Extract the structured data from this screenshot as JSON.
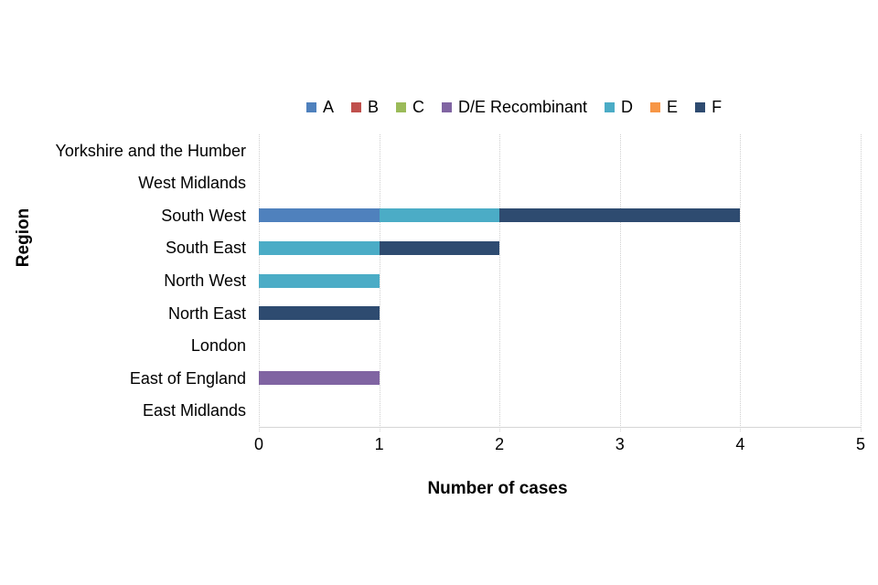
{
  "chart_data": {
    "type": "bar",
    "orientation": "horizontal-stacked",
    "title": "",
    "xlabel": "Number of cases",
    "ylabel": "Region",
    "xlim": [
      0,
      5
    ],
    "x_ticks": [
      0,
      1,
      2,
      3,
      4,
      5
    ],
    "grid": true,
    "legend_position": "top-center",
    "axis_line_color": "#d6d6d6",
    "gridline_color": "#cfcfcf",
    "text_color": "#000000",
    "categories_top_to_bottom": [
      "Yorkshire and the Humber",
      "West Midlands",
      "South West",
      "South East",
      "North West",
      "North East",
      "London",
      "East of England",
      "East Midlands"
    ],
    "series": [
      {
        "name": "A",
        "color": "#4F81BD",
        "values": [
          0,
          0,
          1,
          0,
          0,
          0,
          0,
          0,
          0
        ]
      },
      {
        "name": "B",
        "color": "#C0504D",
        "values": [
          0,
          0,
          0,
          0,
          0,
          0,
          0,
          0,
          0
        ]
      },
      {
        "name": "C",
        "color": "#9BBB59",
        "values": [
          0,
          0,
          0,
          0,
          0,
          0,
          0,
          0,
          0
        ]
      },
      {
        "name": "D/E Recombinant",
        "color": "#8064A2",
        "values": [
          0,
          0,
          0,
          0,
          0,
          0,
          0,
          1,
          0
        ]
      },
      {
        "name": "D",
        "color": "#4BACC6",
        "values": [
          0,
          0,
          1,
          1,
          1,
          0,
          0,
          0,
          0
        ]
      },
      {
        "name": "E",
        "color": "#F79646",
        "values": [
          0,
          0,
          0,
          0,
          0,
          0,
          0,
          0,
          0
        ]
      },
      {
        "name": "F",
        "color": "#2E4B70",
        "values": [
          0,
          0,
          2,
          1,
          0,
          1,
          0,
          0,
          0
        ]
      }
    ]
  }
}
